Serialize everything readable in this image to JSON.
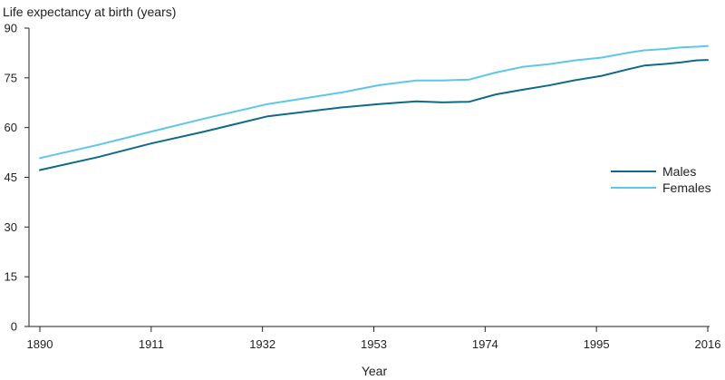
{
  "chart_data": {
    "type": "line",
    "ylabel": "Life expectancy at birth (years)",
    "xlabel": "Year",
    "xlim": [
      1890,
      2016
    ],
    "ylim": [
      0,
      90
    ],
    "xticks": [
      1890,
      1911,
      1932,
      1953,
      1974,
      1995,
      2016
    ],
    "yticks": [
      0,
      15,
      30,
      45,
      60,
      75,
      90
    ],
    "grid": false,
    "legend_position": "right",
    "series": [
      {
        "name": "Males",
        "color": "#0e6a86",
        "x": [
          1890,
          1901,
          1911,
          1921,
          1933,
          1947,
          1954,
          1961,
          1966,
          1971,
          1976,
          1981,
          1986,
          1991,
          1996,
          2001,
          2004,
          2008,
          2011,
          2014,
          2016
        ],
        "y": [
          47.2,
          51.1,
          55.2,
          58.8,
          63.4,
          66.1,
          67.1,
          67.9,
          67.6,
          67.8,
          70.0,
          71.4,
          72.7,
          74.3,
          75.6,
          77.6,
          78.7,
          79.2,
          79.7,
          80.3,
          80.4
        ]
      },
      {
        "name": "Females",
        "color": "#5dc7ea",
        "x": [
          1890,
          1901,
          1911,
          1921,
          1933,
          1947,
          1954,
          1961,
          1966,
          1971,
          1976,
          1981,
          1986,
          1991,
          1996,
          2001,
          2004,
          2008,
          2011,
          2014,
          2016
        ],
        "y": [
          50.8,
          54.8,
          58.8,
          62.7,
          67.1,
          70.6,
          72.8,
          74.2,
          74.2,
          74.5,
          76.6,
          78.3,
          79.1,
          80.3,
          81.1,
          82.6,
          83.3,
          83.7,
          84.2,
          84.4,
          84.6
        ]
      }
    ]
  }
}
